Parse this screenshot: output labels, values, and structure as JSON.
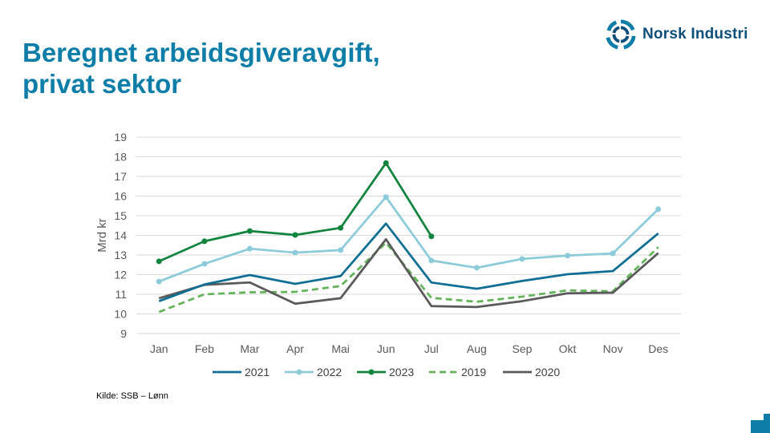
{
  "title": {
    "line1": "Beregnet arbeidsgiveravgift,",
    "line2": "privat sektor"
  },
  "logo": {
    "text": "Norsk Industri",
    "icon": "norsk-industri-logo-icon",
    "color": "#0d4f7a"
  },
  "source": "Kilde: SSB – Lønn",
  "chart_data": {
    "type": "line",
    "categories": [
      "Jan",
      "Feb",
      "Mar",
      "Apr",
      "Mai",
      "Jun",
      "Jul",
      "Aug",
      "Sep",
      "Okt",
      "Nov",
      "Des"
    ],
    "ylabel": "Mrd kr",
    "ylim": [
      9,
      19
    ],
    "yticks": [
      9,
      10,
      11,
      12,
      13,
      14,
      15,
      16,
      17,
      18,
      19
    ],
    "grid": true,
    "legend_position": "bottom",
    "series": [
      {
        "name": "2021",
        "color": "#0f6e94",
        "style": "solid",
        "markers": false,
        "values": [
          10.65,
          11.5,
          11.98,
          11.53,
          11.93,
          14.6,
          11.6,
          11.28,
          11.68,
          12.02,
          12.18,
          14.1
        ]
      },
      {
        "name": "2022",
        "color": "#8ccbd9",
        "style": "solid",
        "markers": true,
        "values": [
          11.65,
          12.55,
          13.32,
          13.12,
          13.25,
          15.95,
          12.72,
          12.35,
          12.8,
          12.97,
          13.08,
          15.33
        ]
      },
      {
        "name": "2023",
        "color": "#11843e",
        "style": "solid",
        "markers": true,
        "values": [
          12.68,
          13.7,
          14.22,
          14.02,
          14.38,
          17.68,
          13.95,
          null,
          null,
          null,
          null,
          null
        ]
      },
      {
        "name": "2019",
        "color": "#63b35a",
        "style": "dashed",
        "markers": false,
        "values": [
          10.1,
          11.0,
          11.1,
          11.12,
          11.42,
          13.62,
          10.82,
          10.62,
          10.88,
          11.2,
          11.15,
          13.4
        ]
      },
      {
        "name": "2020",
        "color": "#5a5a5a",
        "style": "solid",
        "markers": false,
        "values": [
          10.8,
          11.48,
          11.6,
          10.52,
          10.8,
          13.8,
          10.4,
          10.35,
          10.65,
          11.05,
          11.08,
          13.1
        ]
      }
    ]
  },
  "colors": {
    "title": "#0e7ea8",
    "grid": "#d9d9d9",
    "corner": "#0e7ea8"
  }
}
